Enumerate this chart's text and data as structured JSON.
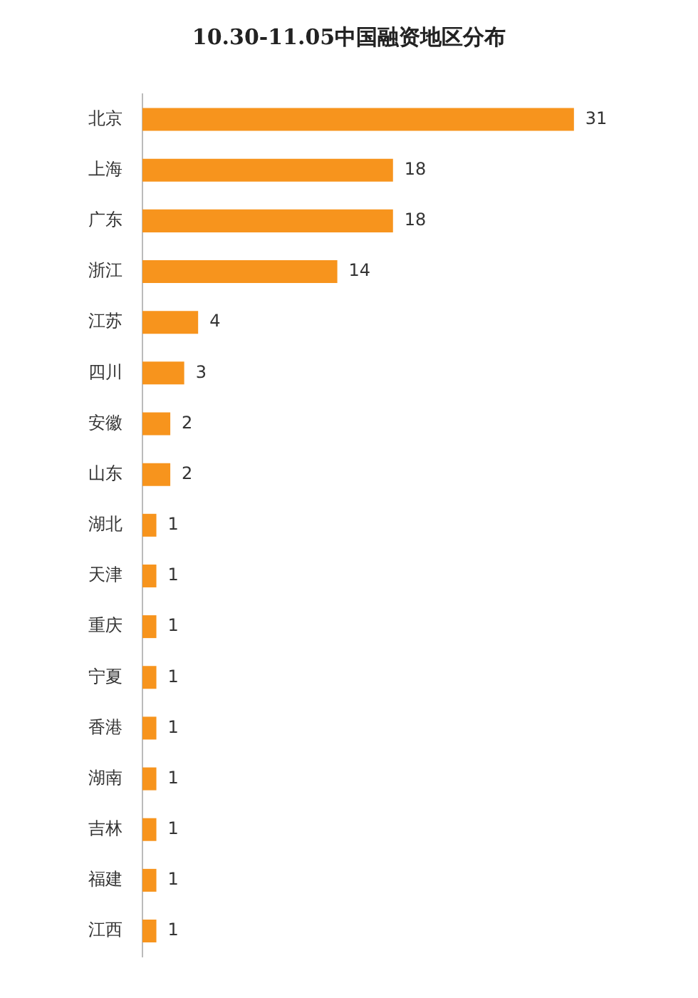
{
  "chart_data": {
    "type": "bar",
    "title": "10.30-11.05中国融资地区分布",
    "orientation": "horizontal",
    "categories": [
      "北京",
      "上海",
      "广东",
      "浙江",
      "江苏",
      "四川",
      "安徽",
      "山东",
      "湖北",
      "天津",
      "重庆",
      "宁夏",
      "香港",
      "湖南",
      "吉林",
      "福建",
      "江西"
    ],
    "values": [
      31,
      18,
      18,
      14,
      4,
      3,
      2,
      2,
      1,
      1,
      1,
      1,
      1,
      1,
      1,
      1,
      1
    ],
    "color": "#f7941d",
    "data_labels": true
  }
}
